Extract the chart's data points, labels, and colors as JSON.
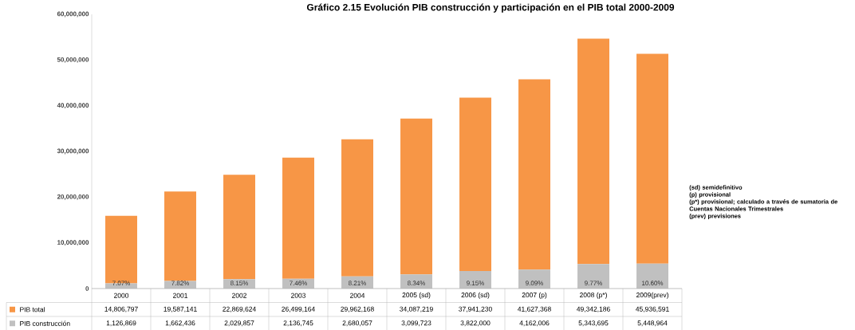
{
  "chart_data": {
    "type": "bar",
    "stacked": true,
    "legend": "bottom",
    "title": "Gráfico 2.15 Evolución PIB construcción y participación en el PIB total 2000-2009",
    "categories": [
      "2000",
      "2001",
      "2002",
      "2003",
      "2004",
      "2005 (sd)",
      "2006 (sd)",
      "2007 (p)",
      "2008 (p*)",
      "2009(prev)"
    ],
    "series": [
      {
        "name": "PIB construcción",
        "color": "#c0c0c0",
        "values": [
          1126869,
          1662436,
          2029857,
          2136745,
          2680057,
          3099723,
          3822000,
          4162006,
          5343695,
          5448964
        ],
        "value_labels": [
          "1,126,869",
          "1,662,436",
          "2,029,857",
          "2,136,745",
          "2,680,057",
          "3,099,723",
          "3,822,000",
          "4,162,006",
          "5,343,695",
          "5,448,964"
        ]
      },
      {
        "name": "PIB total",
        "color": "#f79646",
        "values": [
          14806797,
          19587141,
          22869624,
          26499164,
          29962168,
          34087219,
          37941230,
          41627368,
          49342186,
          45936591
        ],
        "value_labels": [
          "14,806,797",
          "19,587,141",
          "22,869,624",
          "26,499,164",
          "29,962,168",
          "34,087,219",
          "37,941,230",
          "41,627,368",
          "49,342,186",
          "45,936,591"
        ]
      }
    ],
    "ylim": [
      0,
      60000000
    ],
    "yticks": [
      {
        "value": 0,
        "label": "0"
      },
      {
        "value": 10000000,
        "label": "10,000,000"
      },
      {
        "value": 20000000,
        "label": "20,000,000"
      },
      {
        "value": 30000000,
        "label": "30,000,000"
      },
      {
        "value": 40000000,
        "label": "40,000,000"
      },
      {
        "value": 50000000,
        "label": "50,000,000"
      },
      {
        "value": 60000000,
        "label": "60,000,000"
      }
    ],
    "annotations": [
      "7.07%",
      "7.82%",
      "8.15%",
      "7.46%",
      "8.21%",
      "8.34%",
      "9.15%",
      "9.09%",
      "9.77%",
      "10.60%",
      "(sd) semidefinitivo",
      "(p) provisional",
      "(p*) provisional; calculado a través de sumatoria de Cuentas Nacionales Trimestrales",
      "(prev) previsiones"
    ]
  }
}
